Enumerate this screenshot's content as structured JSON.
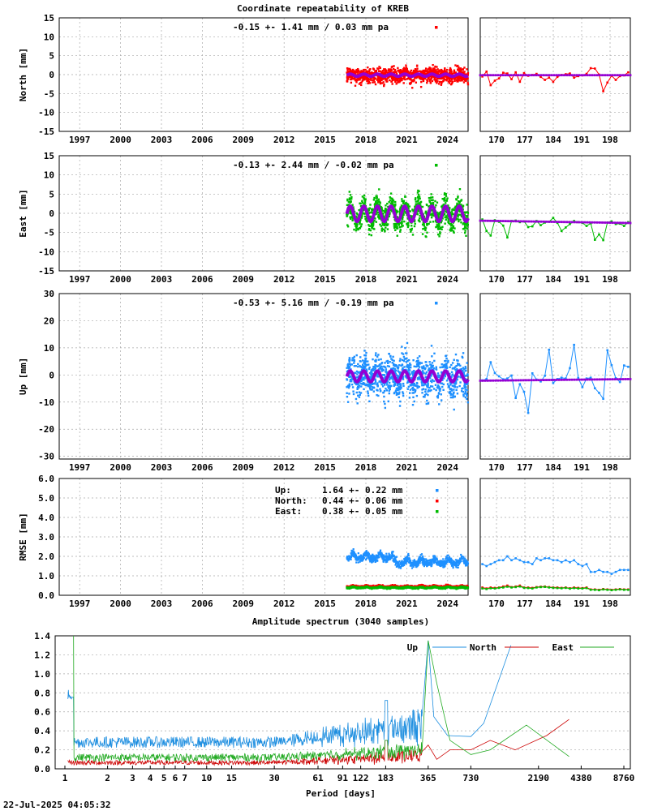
{
  "title": "Coordinate repeatability of KREB",
  "spectrum_title": "Amplitude spectrum (3040 samples)",
  "timestamp": "22-Jul-2025 04:05:32",
  "colors": {
    "north": "#ff0000",
    "east": "#00bb00",
    "up": "#1e90ff",
    "model": "#9400d3",
    "north_line": "#cc0000",
    "east_line": "#22aa22",
    "up_line": "#1f8fe0"
  },
  "chart_data": [
    {
      "type": "scatter",
      "component": "north",
      "ylabel": "North [mm]",
      "ylim": [
        -15,
        15
      ],
      "yticks": [
        -15,
        -10,
        -5,
        0,
        5,
        10,
        15
      ],
      "xlim": [
        1995.5,
        2025.5
      ],
      "xticks": [
        "1997",
        "2000",
        "2003",
        "2006",
        "2009",
        "2012",
        "2015",
        "2018",
        "2021",
        "2024"
      ],
      "annotation": "-0.15 +- 1.41 mm /  0.03 mm pa",
      "data_start": 2016.6,
      "data_end": 2025.5,
      "mean": -0.15,
      "std": 1.41,
      "seasonal_amplitude": 0.3,
      "zoom": {
        "xticks": [
          "170",
          "177",
          "184",
          "191",
          "198"
        ],
        "xlim": [
          166,
          203
        ],
        "y": [
          -0.5,
          0.8,
          -2.8,
          -1.6,
          -1.0,
          0.5,
          0.3,
          -1.2,
          0.6,
          -1.9,
          0.4,
          -0.3,
          -0.1,
          0.2,
          -0.6,
          -1.4,
          -0.8,
          -1.9,
          -0.6,
          -0.1,
          0.1,
          0.3,
          -0.8,
          -0.4,
          -0.2,
          0.2,
          1.7,
          1.6,
          0.0,
          -4.4,
          -2.1,
          -0.3,
          -1.4,
          -0.4,
          -0.2,
          0.6
        ]
      }
    },
    {
      "type": "scatter",
      "component": "east",
      "ylabel": "East [mm]",
      "ylim": [
        -15,
        15
      ],
      "yticks": [
        -15,
        -10,
        -5,
        0,
        5,
        10,
        15
      ],
      "xlim": [
        1995.5,
        2025.5
      ],
      "xticks": [
        "1997",
        "2000",
        "2003",
        "2006",
        "2009",
        "2012",
        "2015",
        "2018",
        "2021",
        "2024"
      ],
      "annotation": "-0.13 +- 2.44 mm / -0.02 mm pa",
      "data_start": 2016.6,
      "data_end": 2025.5,
      "mean": -0.13,
      "std": 2.44,
      "seasonal_amplitude": 2.0,
      "zoom": {
        "xticks": [
          "170",
          "177",
          "184",
          "191",
          "198"
        ],
        "xlim": [
          166,
          203
        ],
        "y": [
          -1.6,
          -4.6,
          -5.8,
          -1.8,
          -2.2,
          -3.2,
          -6.3,
          -2.0,
          -1.9,
          -2.3,
          -2.1,
          -3.6,
          -3.4,
          -2.0,
          -3.1,
          -2.4,
          -2.2,
          -1.2,
          -2.5,
          -4.6,
          -3.7,
          -2.8,
          -2.0,
          -2.3,
          -2.5,
          -3.3,
          -2.6,
          -6.9,
          -5.5,
          -7.0,
          -2.4,
          -2.1,
          -2.8,
          -2.7,
          -3.3,
          -2.3
        ]
      }
    },
    {
      "type": "scatter",
      "component": "up",
      "ylabel": "Up [mm]",
      "ylim": [
        -31,
        30
      ],
      "yticks": [
        -30,
        -20,
        -10,
        0,
        10,
        20,
        30
      ],
      "xlim": [
        1995.5,
        2025.5
      ],
      "xticks": [
        "1997",
        "2000",
        "2003",
        "2006",
        "2009",
        "2012",
        "2015",
        "2018",
        "2021",
        "2024"
      ],
      "annotation": "-0.53 +- 5.16 mm / -0.19 mm pa",
      "data_start": 2016.6,
      "data_end": 2025.5,
      "mean": -0.53,
      "std": 5.16,
      "seasonal_amplitude": 2.0,
      "zoom": {
        "xticks": [
          "170",
          "177",
          "184",
          "191",
          "198"
        ],
        "xlim": [
          166,
          203
        ],
        "y": [
          -2.0,
          -1.5,
          4.7,
          0.7,
          -0.5,
          -1.6,
          -1.3,
          -0.2,
          -8.5,
          -3.4,
          -6.2,
          -14.0,
          0.6,
          -1.7,
          -2.4,
          -0.3,
          9.3,
          -3.0,
          -1.5,
          -1.0,
          -1.3,
          2.5,
          11.1,
          -1.1,
          -4.5,
          -1.3,
          -1.0,
          -4.9,
          -6.6,
          -8.8,
          9.1,
          3.6,
          -1.2,
          -2.6,
          3.5,
          3.0
        ]
      }
    },
    {
      "type": "scatter",
      "component": "rmse",
      "ylabel": "RMSE [mm]",
      "ylim": [
        0,
        6
      ],
      "yticks": [
        "0.0",
        "1.0",
        "2.0",
        "3.0",
        "4.0",
        "5.0",
        "6.0"
      ],
      "xlim": [
        1995.5,
        2025.5
      ],
      "xticks": [
        "1997",
        "2000",
        "2003",
        "2006",
        "2009",
        "2012",
        "2015",
        "2018",
        "2021",
        "2024"
      ],
      "legend": [
        {
          "label": "Up:",
          "value": "1.64 +- 0.22 mm",
          "component": "up"
        },
        {
          "label": "North:",
          "value": "0.44 +- 0.06 mm",
          "component": "north"
        },
        {
          "label": "East:",
          "value": "0.38 +- 0.05 mm",
          "component": "east"
        }
      ],
      "series": [
        {
          "name": "Up",
          "mean": 1.64,
          "std": 0.22
        },
        {
          "name": "North",
          "mean": 0.44,
          "std": 0.06
        },
        {
          "name": "East",
          "mean": 0.38,
          "std": 0.05
        }
      ],
      "data_start": 2016.6,
      "data_end": 2025.5,
      "zoom": {
        "xticks": [
          "170",
          "177",
          "184",
          "191",
          "198"
        ],
        "xlim": [
          166,
          203
        ],
        "up": [
          1.6,
          1.5,
          1.6,
          1.7,
          1.8,
          1.8,
          2.0,
          1.8,
          1.9,
          1.8,
          1.7,
          1.7,
          1.6,
          1.9,
          1.8,
          1.9,
          1.9,
          1.8,
          1.8,
          1.7,
          1.8,
          1.7,
          1.8,
          1.6,
          1.5,
          1.6,
          1.2,
          1.2,
          1.3,
          1.2,
          1.2,
          1.1,
          1.2,
          1.3,
          1.3,
          1.3
        ],
        "north": [
          0.4,
          0.35,
          0.4,
          0.38,
          0.4,
          0.45,
          0.5,
          0.42,
          0.45,
          0.5,
          0.4,
          0.4,
          0.38,
          0.42,
          0.44,
          0.45,
          0.42,
          0.4,
          0.4,
          0.38,
          0.4,
          0.36,
          0.4,
          0.38,
          0.37,
          0.4,
          0.3,
          0.3,
          0.28,
          0.32,
          0.3,
          0.28,
          0.3,
          0.32,
          0.3,
          0.3
        ],
        "east": [
          0.35,
          0.32,
          0.36,
          0.35,
          0.38,
          0.4,
          0.44,
          0.4,
          0.42,
          0.45,
          0.38,
          0.37,
          0.35,
          0.4,
          0.42,
          0.43,
          0.4,
          0.38,
          0.37,
          0.36,
          0.38,
          0.34,
          0.37,
          0.35,
          0.35,
          0.37,
          0.28,
          0.28,
          0.26,
          0.3,
          0.28,
          0.26,
          0.28,
          0.3,
          0.28,
          0.28
        ]
      }
    },
    {
      "type": "line",
      "component": "spectrum",
      "title": "Amplitude spectrum (3040 samples)",
      "xlabel": "Period [days]",
      "x_scale": "reciprocal",
      "xticks": [
        "1",
        "2",
        "3",
        "4",
        "5",
        "6",
        "7",
        "10",
        "15",
        "30",
        "61",
        "91",
        "122",
        "183",
        "365",
        "730",
        "2190",
        "4380",
        "8760"
      ],
      "ylim": [
        0,
        1.4
      ],
      "yticks": [
        "0.0",
        "0.2",
        "0.4",
        "0.6",
        "0.8",
        "1.0",
        "1.2",
        "1.4"
      ],
      "series": [
        {
          "name": "Up",
          "peaks": [
            {
              "period": 365,
              "amplitude": 1.3
            },
            {
              "period": 183,
              "amplitude": 0.72
            }
          ],
          "noise_floor": 0.22
        },
        {
          "name": "North",
          "peaks": [
            {
              "period": 365,
              "amplitude": 0.25
            }
          ],
          "noise_floor": 0.05
        },
        {
          "name": "East",
          "peaks": [
            {
              "period": 365,
              "amplitude": 1.35
            },
            {
              "period": 183,
              "amplitude": 0.3
            }
          ],
          "noise_floor": 0.08
        }
      ]
    }
  ]
}
